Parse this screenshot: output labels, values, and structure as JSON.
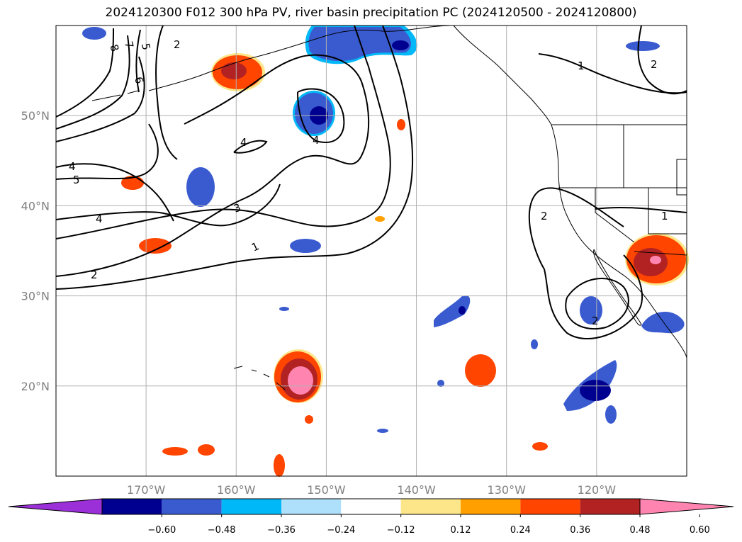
{
  "title": "2024120300 F012 300 hPa PV, river basin precipitation PC (2024120500 - 2024120800)",
  "map": {
    "lon_range": [
      -180,
      -110
    ],
    "lat_range": [
      10,
      60
    ],
    "lat_ticks": [
      {
        "v": 20,
        "label": "20°N"
      },
      {
        "v": 30,
        "label": "30°N"
      },
      {
        "v": 40,
        "label": "40°N"
      },
      {
        "v": 50,
        "label": "50°N"
      }
    ],
    "lon_ticks": [
      {
        "v": -170,
        "label": "170°W"
      },
      {
        "v": -160,
        "label": "160°W"
      },
      {
        "v": -150,
        "label": "150°W"
      },
      {
        "v": -140,
        "label": "140°W"
      },
      {
        "v": -130,
        "label": "130°W"
      },
      {
        "v": -120,
        "label": "120°W"
      }
    ],
    "grid": true
  },
  "colorbar": {
    "ticks": [
      "−0.60",
      "−0.48",
      "−0.36",
      "−0.24",
      "−0.12",
      "0.12",
      "0.24",
      "0.36",
      "0.48",
      "0.60"
    ],
    "colors": [
      "#9b30d9",
      "#000090",
      "#3a5bd0",
      "#00b8f8",
      "#aee0fb",
      "#ffffff",
      "#fde68a",
      "#ffa000",
      "#ff4500",
      "#b22222",
      "#ff85b0"
    ]
  },
  "pv_contour_labels": [
    "1",
    "2",
    "3",
    "4",
    "5",
    "6",
    "7",
    "8"
  ]
}
